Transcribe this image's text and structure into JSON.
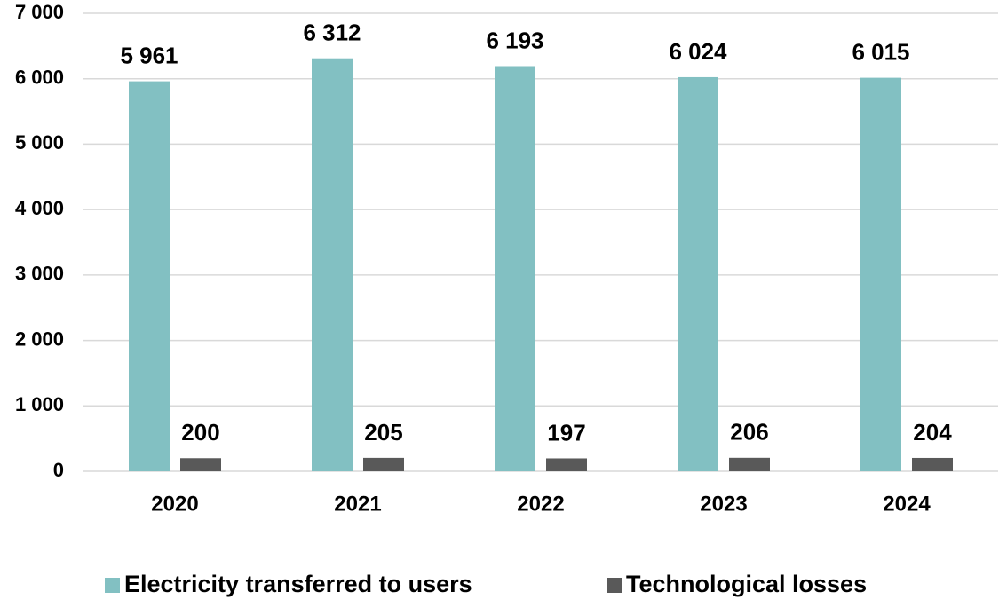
{
  "chart_data": {
    "type": "bar",
    "categories": [
      "2020",
      "2021",
      "2022",
      "2023",
      "2024"
    ],
    "series": [
      {
        "name": "Electricity transferred to users",
        "color": "#82c0c2",
        "values": [
          5961,
          6312,
          6193,
          6024,
          6015
        ],
        "value_labels": [
          "5 961",
          "6 312",
          "6 193",
          "6 024",
          "6 015"
        ]
      },
      {
        "name": "Technological losses",
        "color": "#595959",
        "values": [
          200,
          205,
          197,
          206,
          204
        ]
      }
    ],
    "ylim": [
      0,
      7000
    ],
    "yticks": [
      0,
      {
        "value": 1000,
        "label": "1 000"
      },
      {
        "value": 2000,
        "label": "2 000"
      },
      {
        "value": 3000,
        "label": "3 000"
      },
      {
        "value": 4000,
        "label": "4 000"
      },
      {
        "value": 5000,
        "label": "5 000"
      },
      {
        "value": 6000,
        "label": "6 000"
      },
      {
        "value": 7000,
        "label": "7 000"
      }
    ],
    "grid": true,
    "legend": "bottom"
  }
}
